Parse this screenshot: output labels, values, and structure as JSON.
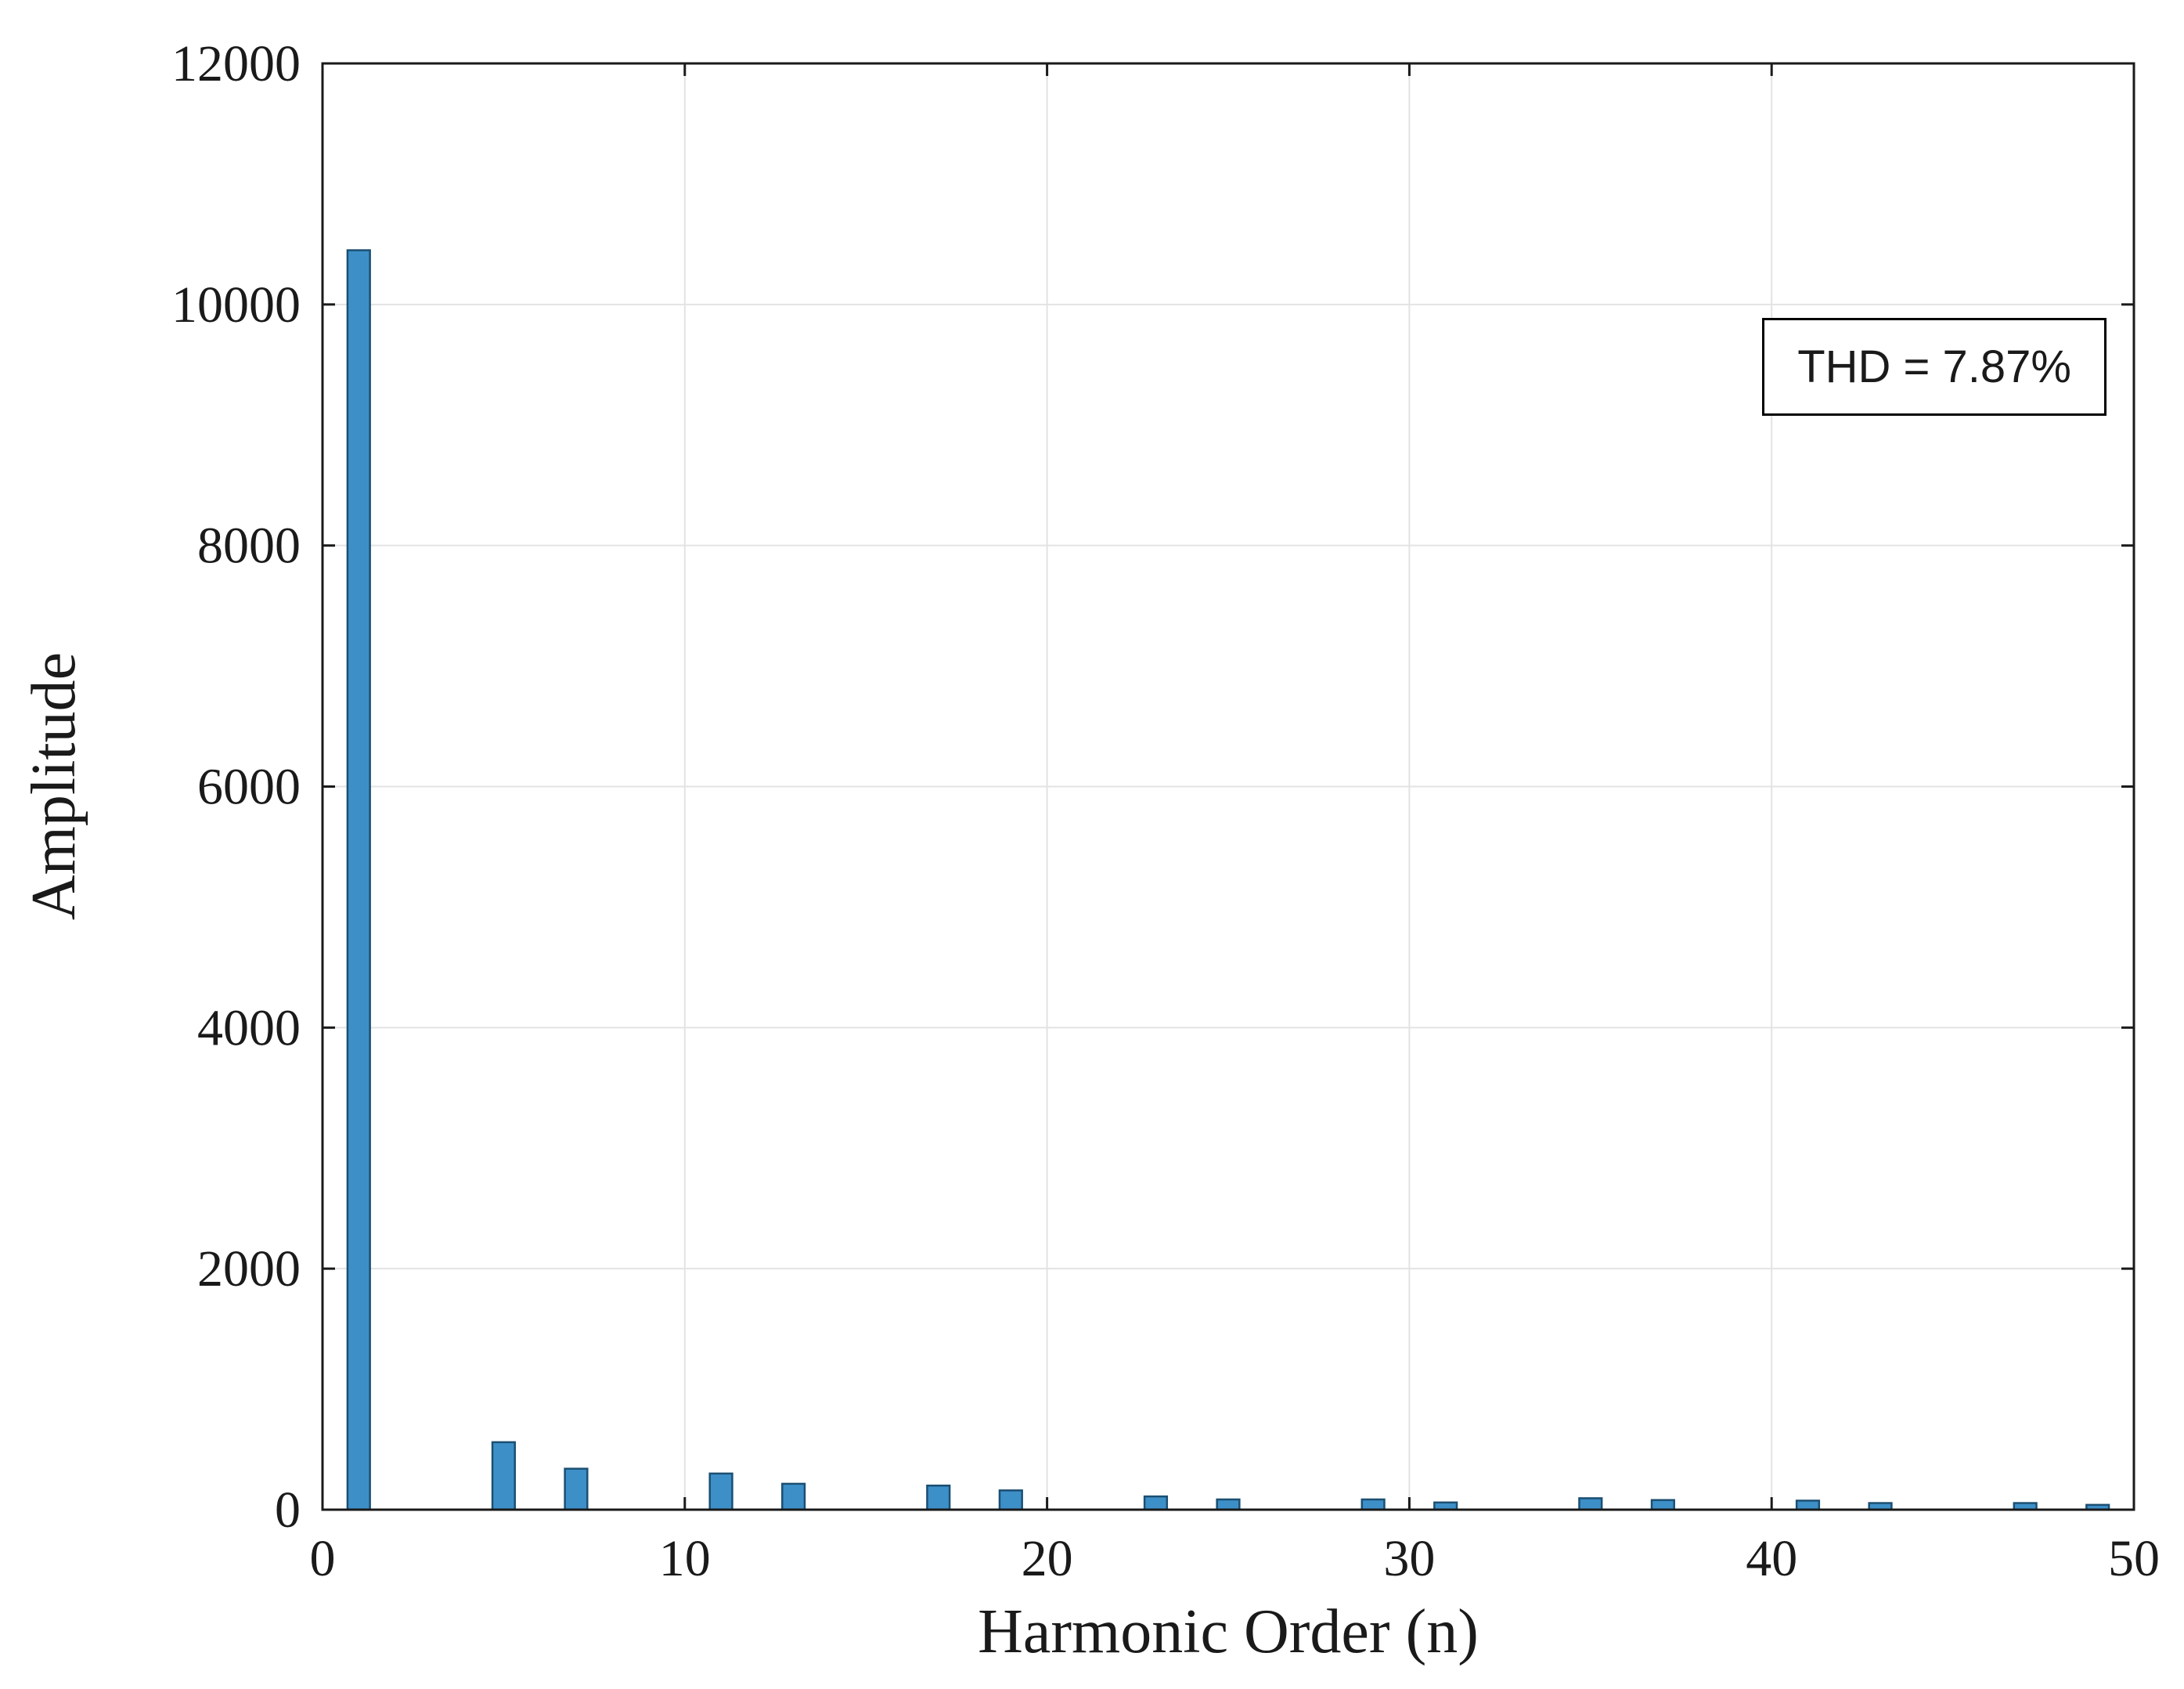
{
  "figure": {
    "background": "#ffffff"
  },
  "chart_data": {
    "type": "bar",
    "title": "",
    "xlabel": "Harmonic Order (n)",
    "ylabel": "Amplitude",
    "xlim": [
      0,
      50
    ],
    "ylim": [
      0,
      12000
    ],
    "x_ticks": [
      0,
      10,
      20,
      30,
      40,
      50
    ],
    "y_ticks": [
      0,
      2000,
      4000,
      6000,
      8000,
      10000,
      12000
    ],
    "grid": true,
    "legend": "none",
    "annotation": {
      "text": "THD = 7.87%"
    },
    "bar_color": "#3d8fc7",
    "bar_edge_color": "#1b4f72",
    "grid_color": "#e3e3e3",
    "axis_color": "#1a1a1a",
    "x": [
      1,
      5,
      7,
      11,
      13,
      17,
      19,
      23,
      25,
      29,
      31,
      35,
      37,
      41,
      43,
      47,
      49
    ],
    "values": [
      10450,
      560,
      340,
      300,
      215,
      200,
      160,
      110,
      85,
      85,
      60,
      95,
      80,
      75,
      55,
      55,
      40
    ]
  }
}
